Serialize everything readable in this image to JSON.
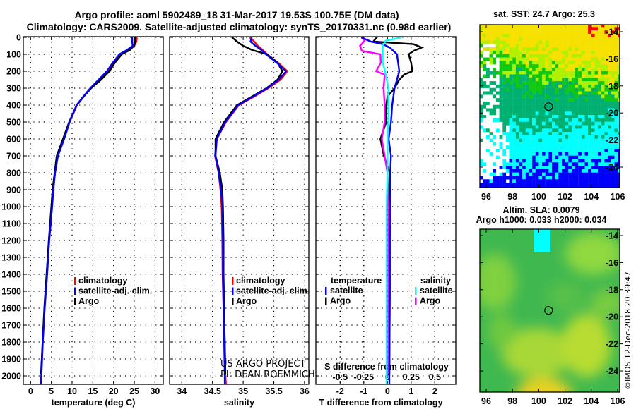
{
  "title": {
    "line1": "Argo profile: aoml 5902489_18 31-Mar-2017 19.53S 100.75E (DM data)",
    "line2": "Climatology: CARS2009. Satellite-adjusted climatology: synTS_20170331.nc (0.98d earlier)"
  },
  "depth_ticks": [
    0,
    100,
    200,
    300,
    400,
    500,
    600,
    700,
    800,
    900,
    1000,
    1100,
    1200,
    1300,
    1400,
    1500,
    1600,
    1700,
    1800,
    1900,
    2000
  ],
  "credits": [
    "US ARGO PROJECT",
    "PI: DEAN ROEMMICH"
  ],
  "timestamp": "©IMOS 12-Dec-2018 20:39:47",
  "colors": {
    "climatology": "#ff0000",
    "satellite": "#0000ff",
    "argo": "#000000",
    "sal_satellite": "#00ffff",
    "sal_argo": "#ff00ff"
  },
  "chart_data": [
    {
      "type": "line",
      "title": "temperature",
      "xlabel": "temperature (deg C)",
      "ylabel": "depth",
      "xticks": [
        "0",
        "5",
        "10",
        "15",
        "20",
        "25",
        "30"
      ],
      "xlim": [
        -1.75,
        32
      ],
      "ylim": [
        2050,
        0
      ],
      "legend": [
        "climatology",
        "satellite-adj. clim.",
        "Argo"
      ],
      "series": [
        {
          "name": "climatology",
          "color": "#ff0000",
          "depth": [
            0,
            25,
            50,
            75,
            100,
            150,
            200,
            250,
            300,
            350,
            400,
            500,
            600,
            700,
            800,
            900,
            1000,
            1200,
            1400,
            1600,
            1800,
            2000,
            2050
          ],
          "values": [
            25.6,
            25.5,
            25.0,
            23.3,
            21.5,
            20.0,
            18.7,
            16.6,
            14.5,
            12.8,
            11.2,
            9.4,
            8.0,
            6.5,
            5.9,
            5.4,
            5.1,
            4.4,
            3.9,
            3.35,
            2.9,
            2.55,
            2.45
          ]
        },
        {
          "name": "Argo",
          "color": "#000000",
          "depth": [
            0,
            25,
            50,
            75,
            100,
            150,
            200,
            250,
            300,
            350,
            400,
            500,
            600,
            700,
            800,
            900,
            1000,
            1200,
            1400,
            1600,
            1800,
            1990
          ],
          "values": [
            25.2,
            25.2,
            24.9,
            23.9,
            22.0,
            20.3,
            19.0,
            17.0,
            14.6,
            12.8,
            11.1,
            9.3,
            7.8,
            6.3,
            5.8,
            5.3,
            5.0,
            4.4,
            3.85,
            3.3,
            2.9,
            2.5
          ]
        },
        {
          "name": "satellite-adj. clim.",
          "color": "#0000ff",
          "depth": [
            0,
            25,
            50,
            75,
            100,
            150,
            200,
            250,
            300,
            350,
            400,
            500,
            600,
            700,
            800,
            900,
            1000,
            1200,
            1400,
            1600,
            1800,
            2000,
            2050
          ],
          "values": [
            24.5,
            24.5,
            24.6,
            23.2,
            21.4,
            19.8,
            18.4,
            16.4,
            14.4,
            12.7,
            11.1,
            9.4,
            8.1,
            6.6,
            5.9,
            5.5,
            5.2,
            4.5,
            4.0,
            3.4,
            2.95,
            2.6,
            2.5
          ]
        }
      ]
    },
    {
      "type": "line",
      "title": "salinity",
      "xlabel": "salinity",
      "ylabel": "depth",
      "xticks": [
        "34",
        "34.5",
        "35",
        "35.5",
        "36"
      ],
      "xlim": [
        33.8,
        36.07
      ],
      "ylim": [
        2050,
        0
      ],
      "legend": [
        "climatology",
        "satellite-adj. clim.",
        "Argo"
      ],
      "series": [
        {
          "name": "climatology",
          "color": "#ff0000",
          "depth": [
            0,
            25,
            50,
            75,
            100,
            150,
            200,
            250,
            300,
            350,
            400,
            500,
            600,
            700,
            800,
            900,
            1000,
            1200,
            1400,
            1600,
            1800,
            2000,
            2050
          ],
          "values": [
            35.11,
            35.18,
            35.24,
            35.32,
            35.39,
            35.57,
            35.72,
            35.61,
            35.41,
            35.18,
            34.93,
            34.72,
            34.57,
            34.54,
            34.6,
            34.63,
            34.65,
            34.66,
            34.665,
            34.68,
            34.7,
            34.71,
            34.72
          ]
        },
        {
          "name": "Argo",
          "color": "#000000",
          "depth": [
            0,
            25,
            50,
            75,
            100,
            150,
            200,
            250,
            300,
            350,
            400,
            500,
            600,
            700,
            800,
            900,
            1000,
            1200,
            1400,
            1600,
            1800,
            1990
          ],
          "values": [
            34.82,
            34.9,
            35.0,
            35.15,
            35.39,
            35.56,
            35.64,
            35.56,
            35.38,
            35.14,
            34.9,
            34.69,
            34.55,
            34.55,
            34.62,
            34.66,
            34.67,
            34.68,
            34.68,
            34.69,
            34.7,
            34.71
          ]
        },
        {
          "name": "satellite-adj. clim.",
          "color": "#0000ff",
          "depth": [
            0,
            25,
            50,
            75,
            100,
            150,
            200,
            250,
            300,
            350,
            400,
            500,
            600,
            700,
            800,
            900,
            1000,
            1200,
            1400,
            1600,
            1800,
            2000,
            2050
          ],
          "values": [
            35.14,
            35.12,
            35.2,
            35.3,
            35.37,
            35.55,
            35.7,
            35.58,
            35.39,
            35.16,
            34.92,
            34.71,
            34.57,
            34.55,
            34.6,
            34.64,
            34.66,
            34.67,
            34.67,
            34.68,
            34.69,
            34.7,
            34.7
          ]
        }
      ]
    },
    {
      "type": "line",
      "title": "difference from climatology",
      "xlabel": "T difference from climatology",
      "x2label": "S difference from climatology",
      "xticks": [
        "-2",
        "-1",
        "0",
        "1",
        "2"
      ],
      "x2ticks": [
        "-0.5",
        "-0.25",
        "0",
        "0.25",
        "0.5"
      ],
      "xlim": [
        -3.0,
        2.9
      ],
      "x2lim": [
        -0.75,
        0.725
      ],
      "ylim": [
        2050,
        0
      ],
      "legend_temperature": {
        "title": "temperature",
        "items": [
          "satellite",
          "Argo"
        ]
      },
      "legend_salinity": {
        "title": "salinity",
        "items": [
          "satellite",
          "Argo"
        ]
      },
      "series": [
        {
          "name": "temperature Argo",
          "axis": "T",
          "color": "#000000",
          "depth": [
            0,
            25,
            40,
            60,
            80,
            100,
            150,
            200,
            220,
            250,
            300,
            350,
            400,
            500,
            600,
            700,
            800,
            1000,
            1500,
            1990
          ],
          "values": [
            -0.45,
            -0.6,
            1.1,
            1.45,
            1.1,
            0.9,
            1.0,
            1.05,
            0.7,
            0.5,
            0.3,
            0.0,
            -0.05,
            -0.05,
            -0.3,
            -0.15,
            0.1,
            0.1,
            0.1,
            0.08
          ]
        },
        {
          "name": "salinity Argo",
          "axis": "S",
          "color": "#ff00ff",
          "depth": [
            0,
            20,
            50,
            80,
            100,
            150,
            200,
            220,
            300,
            400,
            500,
            600,
            700,
            800,
            1000,
            1500,
            1990
          ],
          "values": [
            -0.275,
            -0.24,
            -0.29,
            -0.27,
            -0.075,
            -0.07,
            -0.12,
            -0.03,
            -0.04,
            -0.03,
            -0.03,
            -0.06,
            -0.03,
            0.0,
            0.01,
            0.01,
            0.01
          ]
        },
        {
          "name": "temperature satellite",
          "axis": "T",
          "color": "#0000ff",
          "depth": [
            0,
            25,
            40,
            60,
            100,
            150,
            200,
            250,
            300,
            400,
            500,
            600,
            700,
            800,
            1000,
            1200,
            1500,
            2000,
            2050
          ],
          "values": [
            -1.1,
            -0.7,
            -0.2,
            0.1,
            0.4,
            0.45,
            0.5,
            0.4,
            0.3,
            0.2,
            0.15,
            0.05,
            0.15,
            0.12,
            0.12,
            0.1,
            0.1,
            0.08,
            0.08
          ]
        },
        {
          "name": "salinity satellite",
          "axis": "S",
          "color": "#00ffff",
          "depth": [
            0,
            20,
            50,
            100,
            150,
            200,
            300,
            400,
            500,
            600,
            800,
            1000,
            1500,
            2000,
            2050
          ],
          "values": [
            0.15,
            -0.02,
            -0.05,
            -0.05,
            -0.05,
            -0.025,
            0.01,
            0.01,
            0.01,
            0.0,
            0.0,
            -0.01,
            -0.01,
            -0.01,
            -0.01
          ]
        }
      ]
    }
  ],
  "maps": [
    {
      "title": "sat. SST: 24.7 Argo: 25.3",
      "lat_ticks": [
        "-14",
        "-16",
        "-18",
        "-20",
        "-22",
        "-24"
      ],
      "lon_ticks": [
        "96",
        "98",
        "100",
        "102",
        "104",
        "106"
      ],
      "palette": [
        "#f5e000",
        "#b0f000",
        "#10c810",
        "#00b070",
        "#00ffff",
        "#0000ff"
      ]
    },
    {
      "title": "Altim. SLA: 0.0079",
      "subtitle": "Argo h1000: 0.033 h2000: 0.034",
      "lat_ticks": [
        "-14",
        "-16",
        "-18",
        "-20",
        "-22",
        "-24"
      ],
      "lon_ticks": [
        "96",
        "98",
        "100",
        "102",
        "104",
        "106"
      ]
    }
  ],
  "profile_location": {
    "lat": -19.53,
    "lon": 100.75
  }
}
